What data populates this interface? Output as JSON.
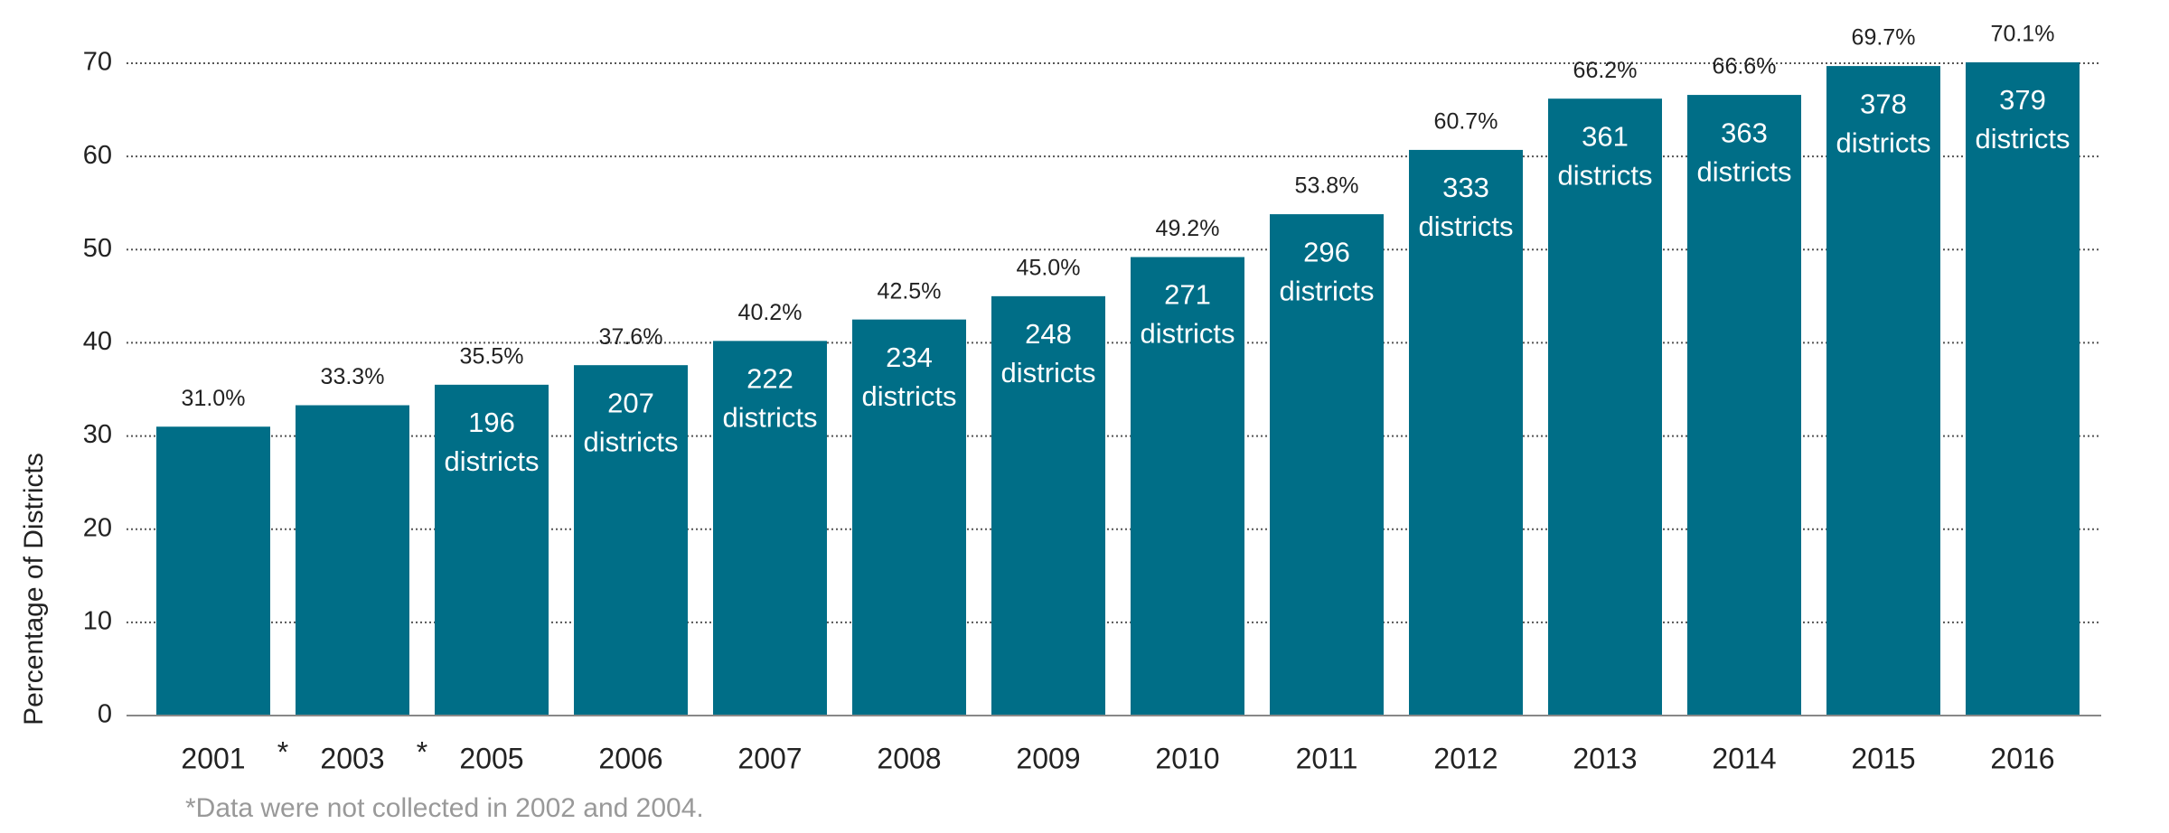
{
  "chart_data": {
    "type": "bar",
    "y_label": "Percentage of Districts",
    "categories": [
      "2001",
      "2003",
      "2005",
      "2006",
      "2007",
      "2008",
      "2009",
      "2010",
      "2011",
      "2012",
      "2013",
      "2014",
      "2015",
      "2016"
    ],
    "values": [
      31.0,
      33.3,
      35.5,
      37.6,
      40.2,
      42.5,
      45.0,
      49.2,
      53.8,
      60.7,
      66.2,
      66.6,
      69.7,
      70.1
    ],
    "value_labels": [
      "31.0%",
      "33.3%",
      "35.5%",
      "37.6%",
      "40.2%",
      "42.5%",
      "45.0%",
      "49.2%",
      "53.8%",
      "60.7%",
      "66.2%",
      "66.6%",
      "69.7%",
      "70.1%"
    ],
    "district_counts": [
      null,
      null,
      196,
      207,
      222,
      234,
      248,
      271,
      296,
      333,
      361,
      363,
      378,
      379
    ],
    "district_unit": "districts",
    "gap_markers": [
      "*",
      "*"
    ],
    "footnote": "*Data were not collected in 2002 and 2004.",
    "color": "#006e87",
    "ylim": [
      0,
      70
    ],
    "yticks": [
      0,
      10,
      20,
      30,
      40,
      50,
      60,
      70
    ],
    "grid": true
  }
}
